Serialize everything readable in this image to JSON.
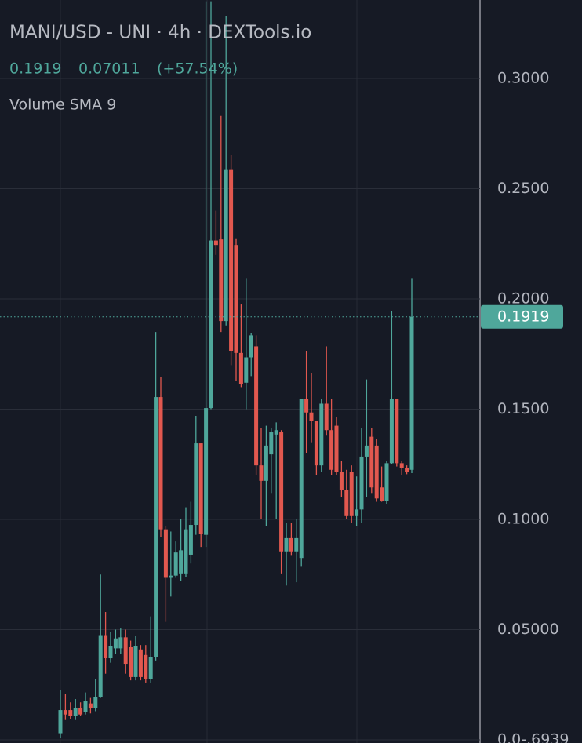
{
  "chart_data": {
    "type": "candlestick",
    "title": "MANI/USD - UNI · 4h · DEXTools.io",
    "change": 0.07011,
    "change_percent": "(+57.54%)",
    "indicator": "Volume SMA 9",
    "up_color": "#4fa79b",
    "down_color": "#e2584f",
    "grid": true,
    "ylim": [
      0,
      0.3356
    ],
    "yticks": [
      {
        "value": 0.3,
        "label": "0.3000"
      },
      {
        "value": 0.25,
        "label": "0.2500"
      },
      {
        "value": 0.2,
        "label": "0.2000"
      },
      {
        "value": 0.15,
        "label": "0.1500"
      },
      {
        "value": 0.1,
        "label": "0.1000"
      },
      {
        "value": 0.05,
        "label": "0.05000"
      },
      {
        "value": 0,
        "label": "0.0-.6939"
      }
    ],
    "open": [
      0.003,
      0.0135,
      0.0135,
      0.011,
      0.0145,
      0.0125,
      0.0165,
      0.0145,
      0.0195,
      0.0475,
      0.037,
      0.0415,
      0.0415,
      0.0465,
      0.042,
      0.0285,
      0.041,
      0.0385,
      0.0275,
      0.0375,
      0.1555,
      0.0955,
      0.0735,
      0.0745,
      0.0755,
      0.0755,
      0.084,
      0.0975,
      0.1345,
      0.093,
      0.1505,
      0.2265,
      0.227,
      0.19,
      0.2585,
      0.2245,
      0.1755,
      0.162,
      0.1735,
      0.1785,
      0.1245,
      0.1175,
      0.1295,
      0.1385,
      0.1395,
      0.0855,
      0.0915,
      0.0855,
      0.0825,
      0.1545,
      0.1485,
      0.1445,
      0.1245,
      0.1525,
      0.1405,
      0.1425,
      0.1215,
      0.1135,
      0.1215,
      0.1015,
      0.1045,
      0.1285,
      0.1375,
      0.1335,
      0.1145,
      0.1085,
      0.1255,
      0.1545,
      0.1255,
      0.1235,
      0.1225
    ],
    "high": [
      0.0225,
      0.021,
      0.017,
      0.0185,
      0.017,
      0.0215,
      0.019,
      0.0275,
      0.075,
      0.058,
      0.049,
      0.05,
      0.0505,
      0.05,
      0.045,
      0.047,
      0.043,
      0.043,
      0.056,
      0.185,
      0.1645,
      0.097,
      0.0945,
      0.09,
      0.1,
      0.1055,
      0.108,
      0.147,
      0.1345,
      0.335,
      0.335,
      0.24,
      0.283,
      0.3285,
      0.2655,
      0.2275,
      0.1975,
      0.2095,
      0.1845,
      0.1835,
      0.1415,
      0.1425,
      0.1415,
      0.144,
      0.1405,
      0.0985,
      0.0985,
      0.1,
      0.1545,
      0.1765,
      0.1665,
      0.1445,
      0.1545,
      0.1785,
      0.1545,
      0.1465,
      0.1265,
      0.1225,
      0.1245,
      0.1195,
      0.1415,
      0.1635,
      0.1415,
      0.1365,
      0.124,
      0.1265,
      0.1945,
      0.1545,
      0.1265,
      0.1245,
      0.2095
    ],
    "low": [
      0.001,
      0.009,
      0.0095,
      0.009,
      0.011,
      0.0115,
      0.012,
      0.013,
      0.019,
      0.03,
      0.035,
      0.039,
      0.039,
      0.03,
      0.027,
      0.027,
      0.027,
      0.026,
      0.026,
      0.036,
      0.092,
      0.0535,
      0.065,
      0.0735,
      0.072,
      0.074,
      0.08,
      0.093,
      0.0875,
      0.0875,
      0.15,
      0.22,
      0.185,
      0.188,
      0.17,
      0.163,
      0.16,
      0.15,
      0.165,
      0.12,
      0.1,
      0.097,
      0.112,
      0.1,
      0.0755,
      0.07,
      0.0835,
      0.0715,
      0.0785,
      0.13,
      0.135,
      0.12,
      0.1215,
      0.138,
      0.12,
      0.12,
      0.11,
      0.1,
      0.0985,
      0.097,
      0.0985,
      0.11,
      0.112,
      0.108,
      0.108,
      0.107,
      0.125,
      0.124,
      0.12,
      0.1205,
      0.121
    ],
    "close": [
      0.0135,
      0.0115,
      0.011,
      0.0145,
      0.0115,
      0.0175,
      0.0145,
      0.0195,
      0.0475,
      0.037,
      0.0425,
      0.046,
      0.0465,
      0.0345,
      0.0285,
      0.0425,
      0.0285,
      0.0275,
      0.0375,
      0.1555,
      0.0955,
      0.0735,
      0.0745,
      0.085,
      0.086,
      0.0955,
      0.0975,
      0.1345,
      0.0935,
      0.1505,
      0.2265,
      0.2245,
      0.19,
      0.2585,
      0.1765,
      0.1755,
      0.1615,
      0.1735,
      0.1835,
      0.1245,
      0.1175,
      0.1335,
      0.1395,
      0.1405,
      0.0855,
      0.0915,
      0.0855,
      0.0915,
      0.1545,
      0.1485,
      0.1445,
      0.1245,
      0.1525,
      0.1405,
      0.1225,
      0.1215,
      0.1135,
      0.1015,
      0.1015,
      0.1045,
      0.1285,
      0.1335,
      0.1145,
      0.1095,
      0.1085,
      0.1255,
      0.1545,
      0.1255,
      0.1235,
      0.1215,
      0.1919
    ]
  }
}
